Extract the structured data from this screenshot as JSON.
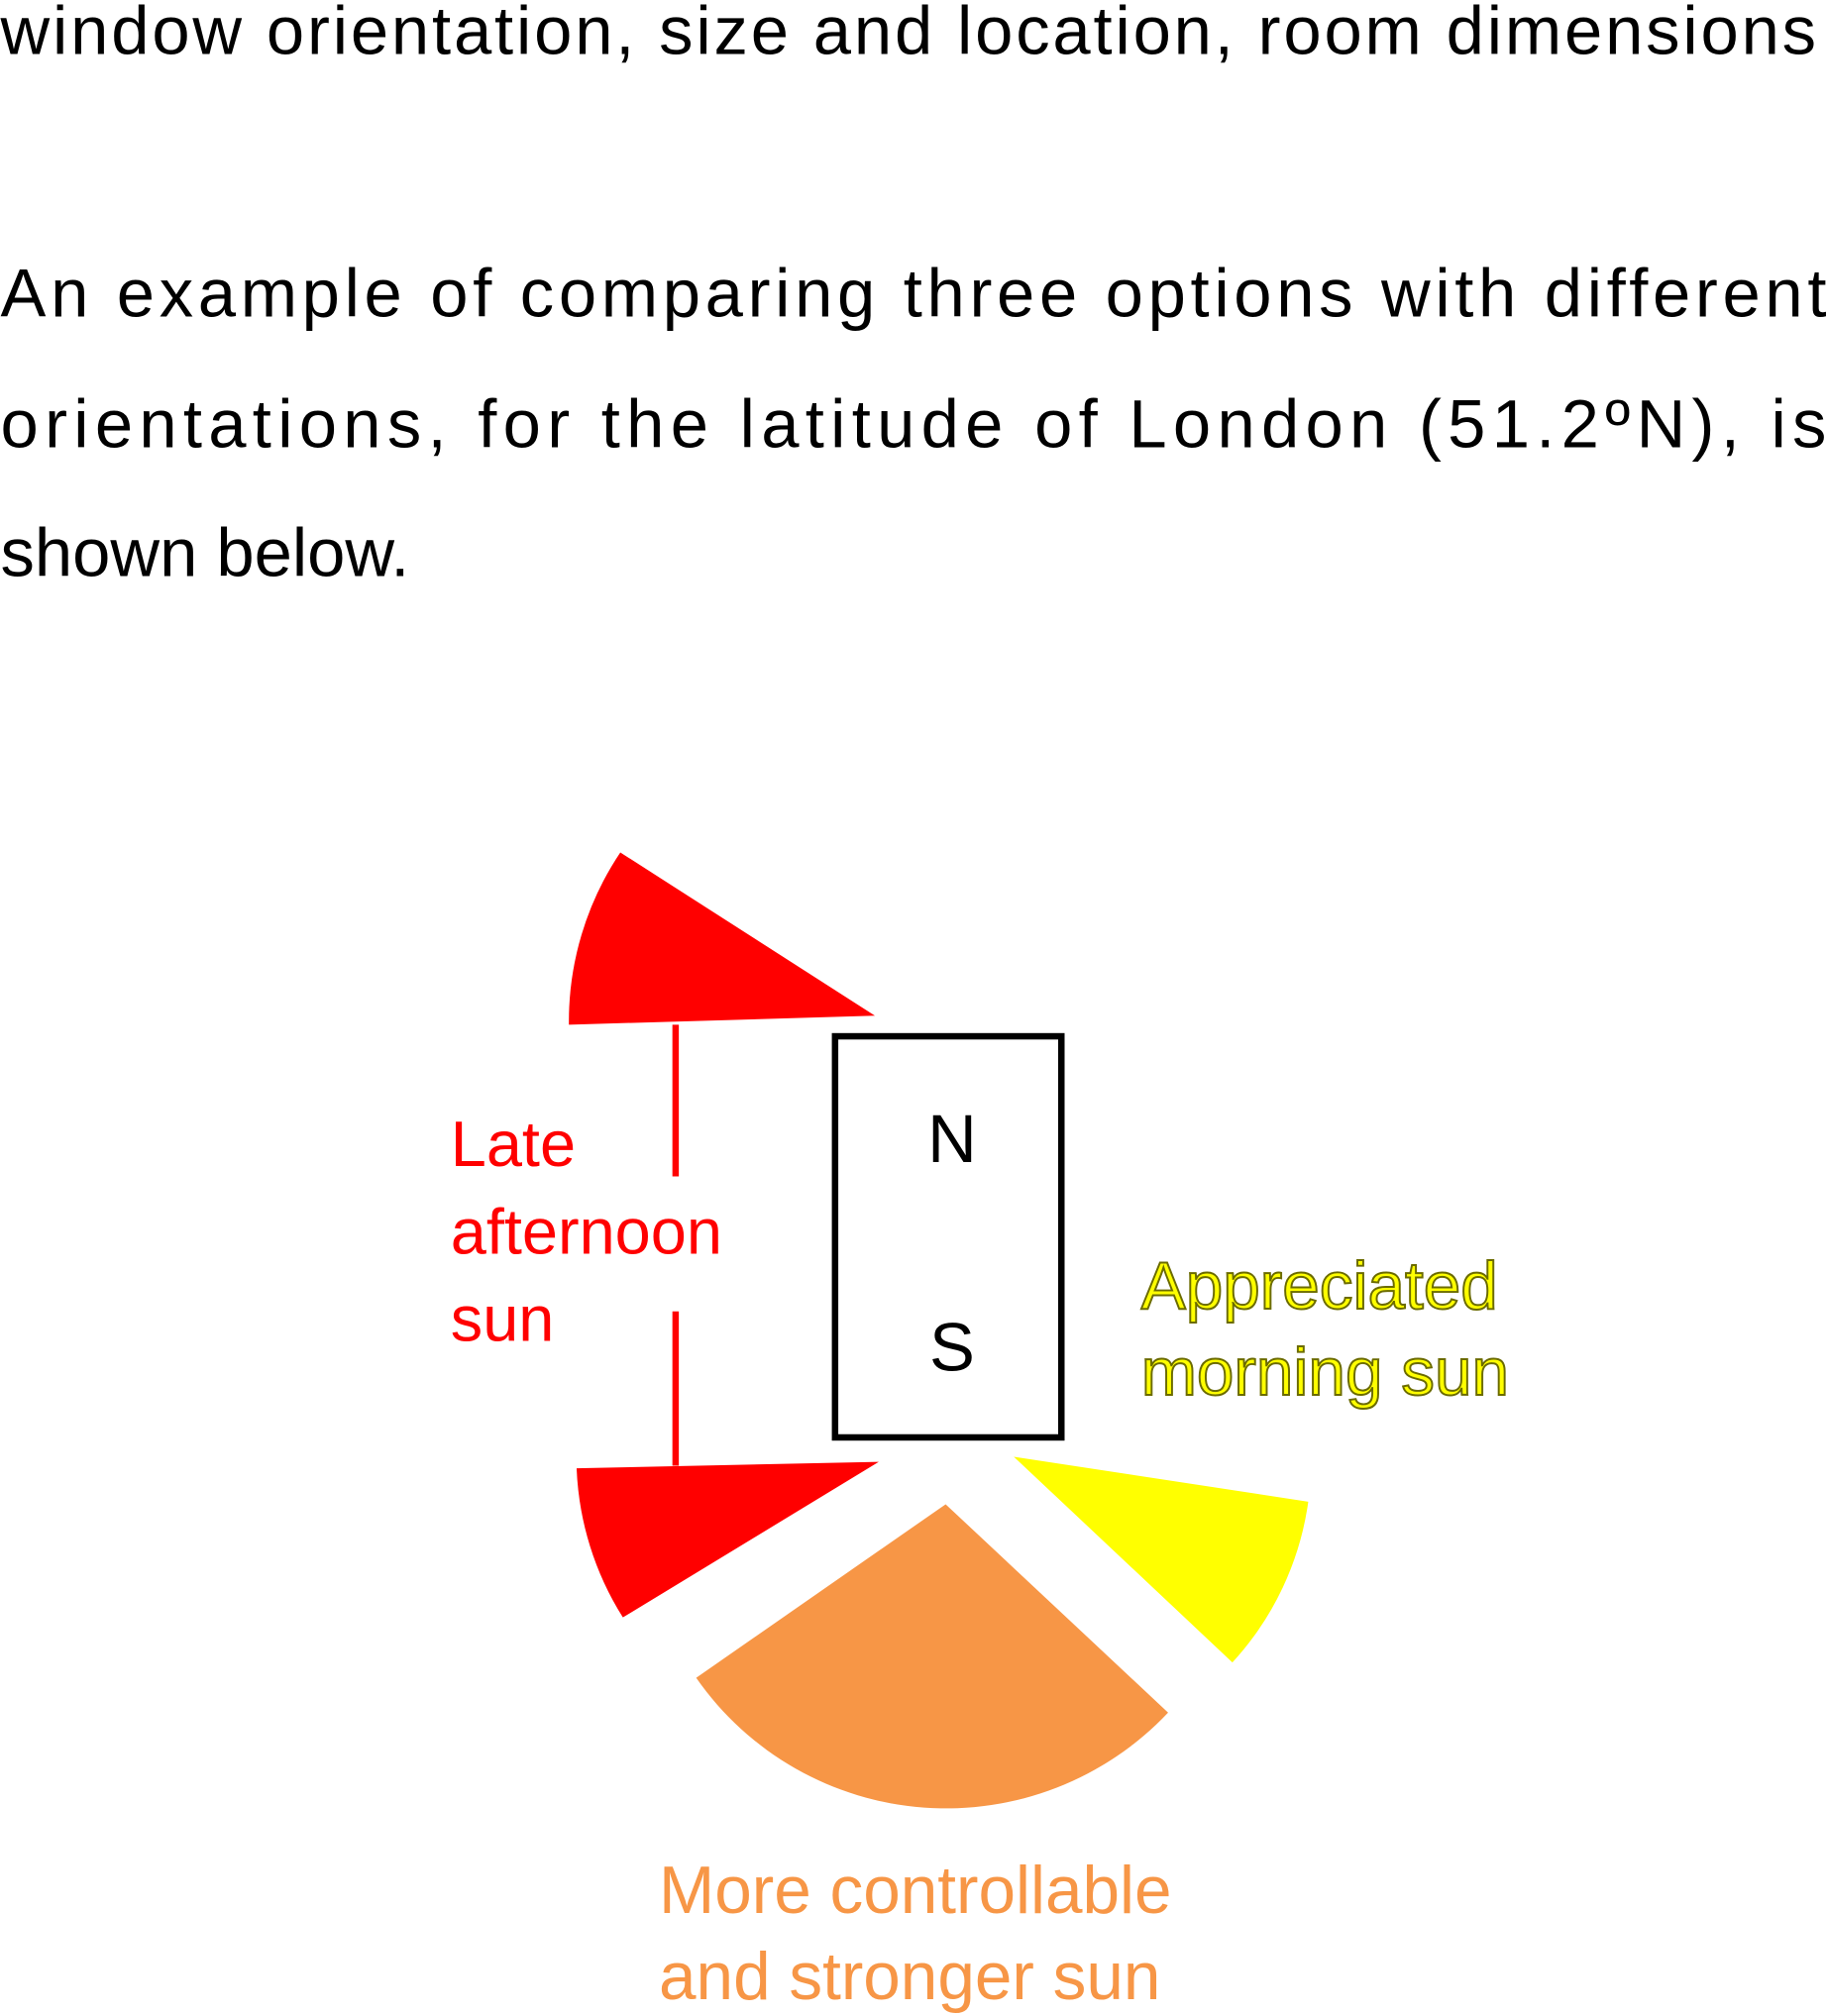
{
  "intro": "window orientation, size and location, room dimensions",
  "paragraph": {
    "lines": [
      "An example of comparing three options with different",
      "orientations, for the latitude of London (51.2ºN), is",
      "shown below."
    ]
  },
  "diagram": {
    "compass": {
      "north": "N",
      "south": "S"
    },
    "west_label": {
      "lines": [
        "Late",
        "afternoon",
        "sun"
      ]
    },
    "east_label": {
      "lines": [
        "Appreciated",
        "morning sun"
      ]
    },
    "south_label": {
      "lines": [
        "More controllable",
        "and stronger sun"
      ]
    }
  }
}
